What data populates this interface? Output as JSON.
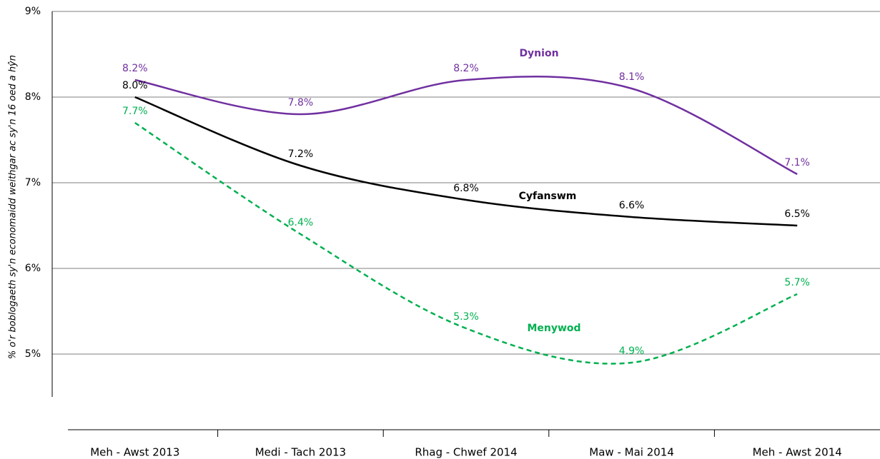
{
  "chart_data": {
    "type": "line",
    "y_label": "% o'r boblogaeth sy'n economaidd weithgar ac sy'n 16 oed a hŷn",
    "categories": [
      "Meh - Awst 2013",
      "Medi - Tach 2013",
      "Rhag - Chwef 2014",
      "Maw - Mai 2014",
      "Meh - Awst 2014"
    ],
    "series": [
      {
        "name": "Dynion",
        "color": "#7030a0",
        "line_style": "solid",
        "values": [
          8.2,
          7.8,
          8.2,
          8.1,
          7.1
        ],
        "value_labels": [
          "8.2%",
          "7.8%",
          "8.2%",
          "8.1%",
          "7.1%"
        ]
      },
      {
        "name": "Cyfanswm",
        "color": "#000000",
        "line_style": "solid",
        "values": [
          8.0,
          7.2,
          6.8,
          6.6,
          6.5
        ],
        "value_labels": [
          "8.0%",
          "7.2%",
          "6.8%",
          "6.6%",
          "6.5%"
        ]
      },
      {
        "name": "Menywod",
        "color": "#00b050",
        "line_style": "dashed",
        "values": [
          7.7,
          6.4,
          5.3,
          4.9,
          5.7
        ],
        "value_labels": [
          "7.7%",
          "6.4%",
          "5.3%",
          "4.9%",
          "5.7%"
        ]
      }
    ],
    "ylim": [
      4.5,
      9
    ],
    "yticks": [
      {
        "value": 5,
        "label": "5%"
      },
      {
        "value": 6,
        "label": "6%"
      },
      {
        "value": 7,
        "label": "7%"
      },
      {
        "value": 8,
        "label": "8%"
      },
      {
        "value": 9,
        "label": "9%"
      }
    ],
    "grid": true
  }
}
